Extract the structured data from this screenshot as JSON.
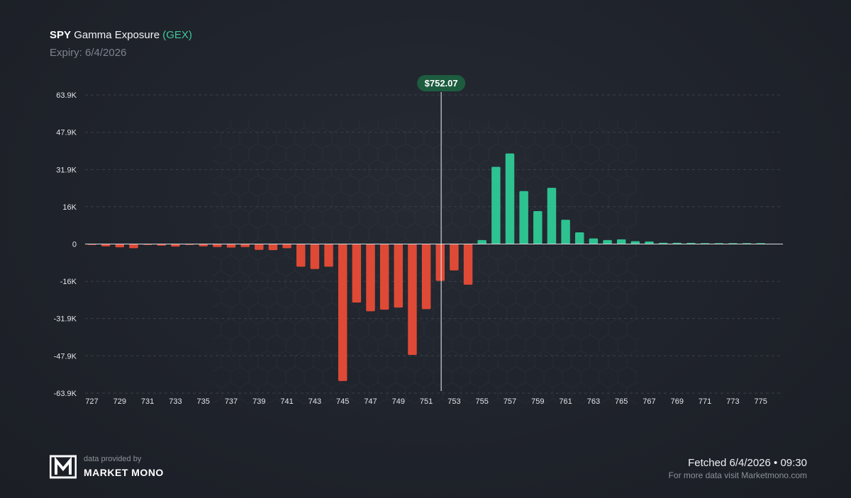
{
  "header": {
    "ticker": "SPY",
    "title_text": "Gamma Exposure",
    "title_tag": "(GEX)",
    "expiry": "Expiry: 6/4/2026"
  },
  "footer": {
    "provided_by": "data provided by",
    "brand": "MARKET MONO",
    "fetched": "Fetched 6/4/2026 • 09:30",
    "more": "For more data visit Marketmono.com"
  },
  "colors": {
    "positive": "#2ec291",
    "negative": "#de4a36",
    "price_label_bg": "#1d5c3f",
    "grid": "#3a3f49"
  },
  "chart_data": {
    "type": "bar",
    "title": "SPY Gamma Exposure (GEX)",
    "ylim": [
      -63900,
      63900
    ],
    "y_ticks": [
      63900,
      47900,
      31900,
      16000,
      0,
      -16000,
      -31900,
      -47900,
      -63900
    ],
    "y_tick_labels": [
      "63.9K",
      "47.9K",
      "31.9K",
      "16K",
      "0",
      "-16K",
      "-31.9K",
      "-47.9K",
      "-63.9K"
    ],
    "x_ticks": [
      727,
      729,
      731,
      733,
      735,
      737,
      739,
      741,
      743,
      745,
      747,
      749,
      751,
      753,
      755,
      757,
      759,
      761,
      763,
      765,
      767,
      769,
      771,
      773,
      775
    ],
    "x_tick_labels": [
      "727",
      "729",
      "731",
      "733",
      "735",
      "737",
      "739",
      "741",
      "743",
      "745",
      "747",
      "749",
      "751",
      "753",
      "755",
      "757",
      "759",
      "761",
      "763",
      "765",
      "767",
      "769",
      "771",
      "773",
      "775"
    ],
    "strikes": [
      727,
      728,
      729,
      730,
      731,
      732,
      733,
      734,
      735,
      736,
      737,
      738,
      739,
      740,
      741,
      742,
      743,
      744,
      745,
      746,
      747,
      748,
      749,
      750,
      751,
      752,
      753,
      754,
      755,
      756,
      757,
      758,
      759,
      760,
      761,
      762,
      763,
      764,
      765,
      766,
      767,
      768,
      769,
      770,
      771,
      772,
      773,
      774,
      775
    ],
    "values": [
      -300,
      -1000,
      -1400,
      -1800,
      -150,
      -700,
      -1100,
      -150,
      -1000,
      -1300,
      -1500,
      -1300,
      -2500,
      -2600,
      -1800,
      -9700,
      -10700,
      -9700,
      -58700,
      -25100,
      -28800,
      -28100,
      -27200,
      -47500,
      -27900,
      -15800,
      -11300,
      -17400,
      1700,
      33100,
      38800,
      22700,
      14100,
      24100,
      10400,
      5000,
      2400,
      1700,
      2000,
      1200,
      1100,
      550,
      550,
      500,
      200,
      150,
      100,
      80,
      60
    ],
    "current_price": 752.07,
    "current_price_label": "$752.07"
  }
}
